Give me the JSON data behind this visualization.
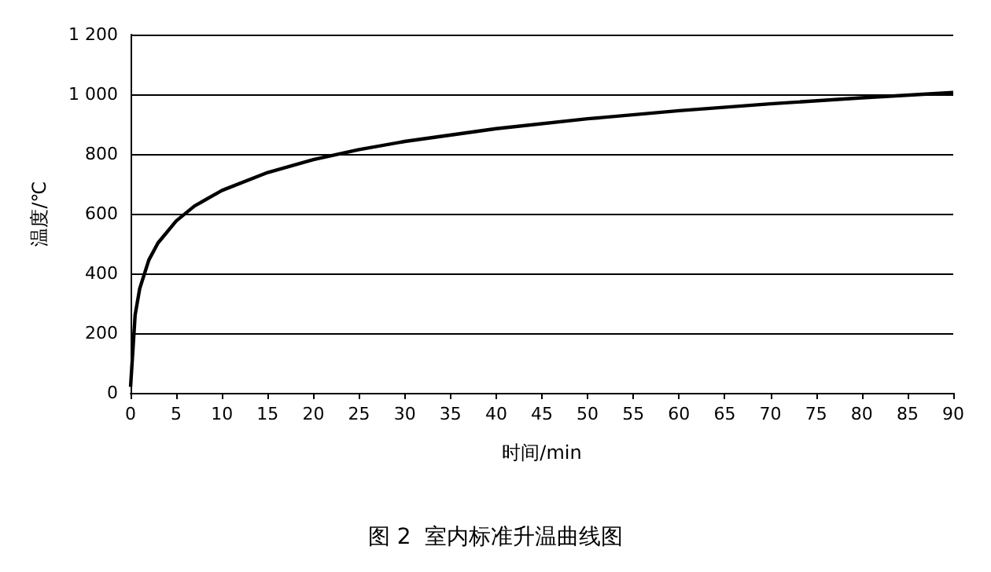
{
  "chart_data": {
    "type": "line",
    "title": "图 2  室内标准升温曲线图",
    "xlabel": "时间/min",
    "ylabel": "温度/℃",
    "x": [
      0,
      0.5,
      1,
      2,
      3,
      5,
      7,
      10,
      15,
      20,
      25,
      30,
      40,
      50,
      60,
      70,
      80,
      90
    ],
    "series": [
      {
        "color": "#000000",
        "values": [
          20,
          261,
          349,
          445,
          502,
          576,
          626,
          678,
          738,
          781,
          815,
          842,
          885,
          918,
          945,
          968,
          988,
          1006
        ]
      }
    ],
    "xlim": [
      0,
      90
    ],
    "xticks": [
      0,
      5,
      10,
      15,
      20,
      25,
      30,
      35,
      40,
      45,
      50,
      55,
      60,
      65,
      70,
      75,
      80,
      85,
      90
    ],
    "ylim": [
      0,
      1200
    ],
    "yticks": [
      0,
      200,
      400,
      600,
      800,
      {
        "value": 1000,
        "label": "1 000"
      },
      {
        "value": 1200,
        "label": "1 200"
      }
    ],
    "grid": "y",
    "marker": "none",
    "line_style": "solid"
  }
}
